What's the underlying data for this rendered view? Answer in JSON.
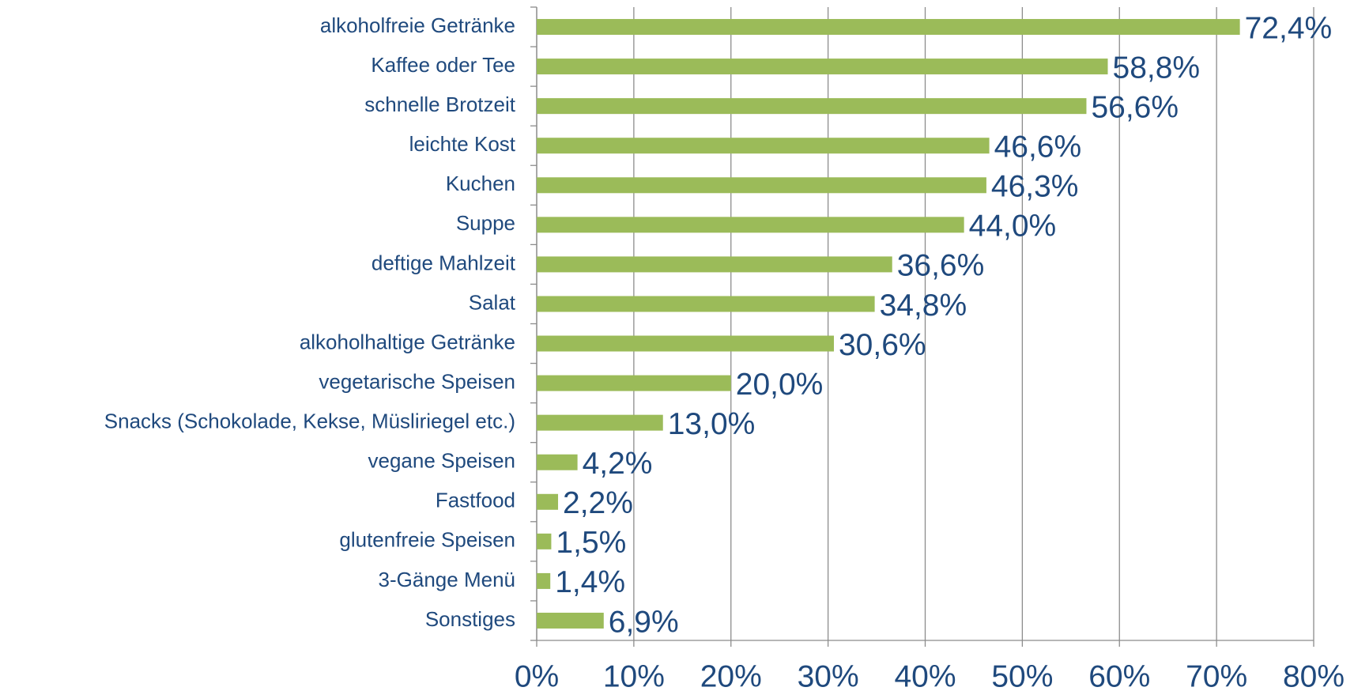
{
  "chart_data": {
    "type": "bar",
    "orientation": "horizontal",
    "categories": [
      "alkoholfreie Getränke",
      "Kaffee oder Tee",
      "schnelle Brotzeit",
      "leichte Kost",
      "Kuchen",
      "Suppe",
      "deftige Mahlzeit",
      "Salat",
      "alkoholhaltige Getränke",
      "vegetarische Speisen",
      "Snacks (Schokolade, Kekse, Müsliriegel etc.)",
      "vegane Speisen",
      "Fastfood",
      "glutenfreie Speisen",
      "3-Gänge Menü",
      "Sonstiges"
    ],
    "values": [
      72.4,
      58.8,
      56.6,
      46.6,
      46.3,
      44.0,
      36.6,
      34.8,
      30.6,
      20.0,
      13.0,
      4.2,
      2.2,
      1.5,
      1.4,
      6.9
    ],
    "value_labels": [
      "72,4%",
      "58,8%",
      "56,6%",
      "46,6%",
      "46,3%",
      "44,0%",
      "36,6%",
      "34,8%",
      "30,6%",
      "20,0%",
      "13,0%",
      "4,2%",
      "2,2%",
      "1,5%",
      "1,4%",
      "6,9%"
    ],
    "color": "#9bbb59",
    "xlim": [
      0,
      80
    ],
    "xticks": [
      {
        "value": 0,
        "label": "0%"
      },
      {
        "value": 10,
        "label": "10%"
      },
      {
        "value": 20,
        "label": "20%"
      },
      {
        "value": 30,
        "label": "30%"
      },
      {
        "value": 40,
        "label": "40%"
      },
      {
        "value": 50,
        "label": "50%"
      },
      {
        "value": 60,
        "label": "60%"
      },
      {
        "value": 70,
        "label": "70%"
      },
      {
        "value": 80,
        "label": "80%"
      }
    ],
    "grid": true
  }
}
